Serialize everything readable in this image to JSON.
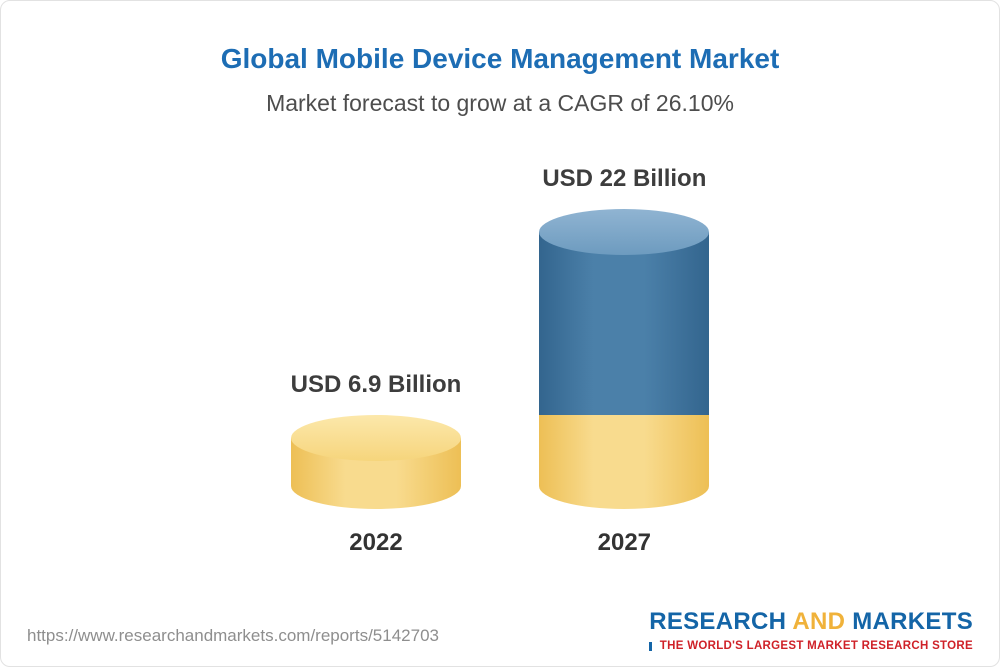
{
  "header": {
    "title": "Global Mobile Device Management Market",
    "subtitle": "Market forecast to grow at a CAGR of 26.10%"
  },
  "chart_data": {
    "type": "bar",
    "title": "Global Mobile Device Management Market",
    "subtitle": "Market forecast to grow at a CAGR of 26.10%",
    "categories": [
      "2022",
      "2027"
    ],
    "values": [
      6.9,
      22
    ],
    "value_labels": [
      "USD 6.9 Billion",
      "USD 22 Billion"
    ],
    "unit": "USD Billion",
    "cagr": "26.10%",
    "ylim": [
      0,
      22
    ],
    "legend_position": "none",
    "grid": false,
    "colors": {
      "base_segment": "#f3cf6d",
      "growth_segment": "#3d739f"
    },
    "notes": "2027 column is a stacked cylinder: yellow base equals 2022 value (6.9), blue portion is growth to 22."
  },
  "footer": {
    "url": "https://www.researchandmarkets.com/reports/5142703",
    "logo": {
      "research": "RESEARCH",
      "and": "AND",
      "markets": "MARKETS",
      "tagline": "THE WORLD'S LARGEST MARKET RESEARCH STORE"
    }
  }
}
